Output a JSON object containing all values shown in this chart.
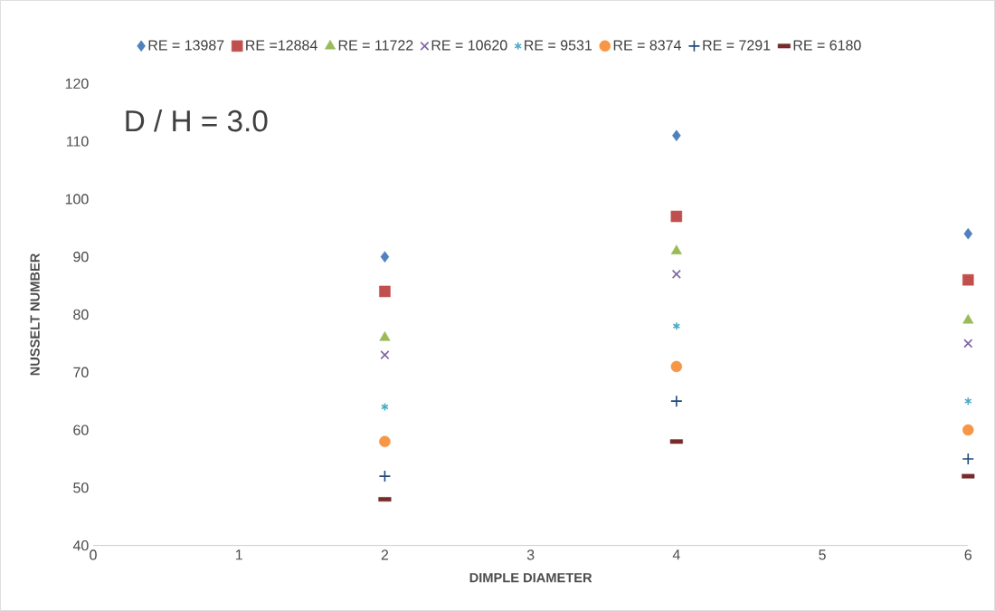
{
  "chart_data": {
    "type": "scatter",
    "xlabel": "DIMPLE DIAMETER",
    "ylabel": "NUSSELT NUMBER",
    "annotations": [
      "D / H = 3.0"
    ],
    "x": [
      2,
      4,
      6
    ],
    "xlim": [
      0,
      6
    ],
    "xticks": [
      0,
      1,
      2,
      3,
      4,
      5,
      6
    ],
    "ylim": [
      40,
      120
    ],
    "yticks": [
      40,
      50,
      60,
      70,
      80,
      90,
      100,
      110,
      120
    ],
    "legend": "top",
    "series": [
      {
        "name": "RE = 13987",
        "color": "#4f81bd",
        "marker": "diamond",
        "values": [
          90,
          111,
          94
        ]
      },
      {
        "name": "RE =12884",
        "color": "#c0504d",
        "marker": "square",
        "values": [
          84,
          97,
          86
        ]
      },
      {
        "name": "RE = 11722",
        "color": "#9bbb59",
        "marker": "triangle",
        "values": [
          76,
          91,
          79
        ]
      },
      {
        "name": "RE = 10620",
        "color": "#8064a2",
        "marker": "cross",
        "values": [
          73,
          87,
          75
        ]
      },
      {
        "name": "RE = 9531",
        "color": "#4bacc6",
        "values": [
          64,
          78,
          65
        ]
      },
      {
        "name": "RE = 8374",
        "color": "#f79646",
        "marker": "circle",
        "values": [
          58,
          71,
          60
        ]
      },
      {
        "name": "RE = 7291",
        "color": "#1f497d",
        "marker": "plus",
        "values": [
          52,
          65,
          55
        ]
      },
      {
        "name": "RE = 6180",
        "color": "#772c2a",
        "values": [
          48,
          58,
          52
        ]
      }
    ]
  }
}
